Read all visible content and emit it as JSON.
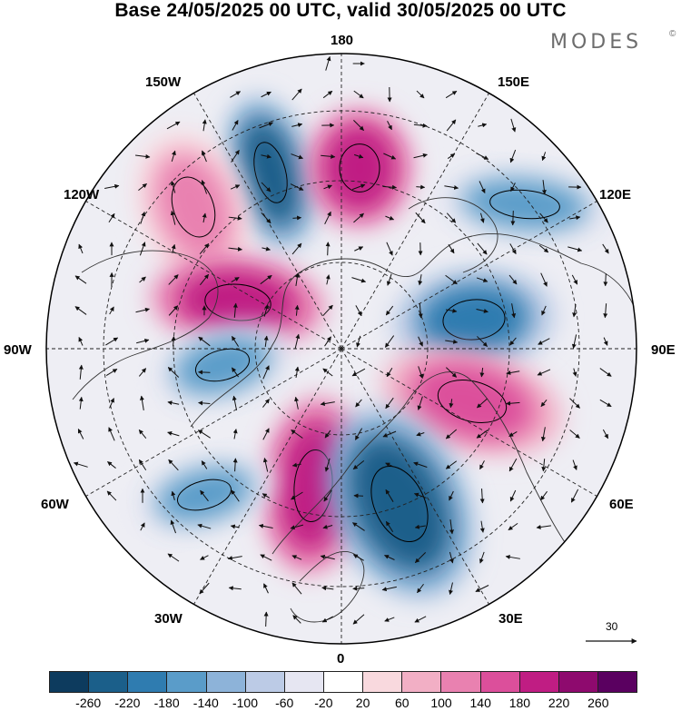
{
  "title": "Base 24/05/2025 00 UTC, valid 30/05/2025 00 UTC",
  "logo": {
    "text": "MODES",
    "mark": "©"
  },
  "map": {
    "projection": "north-polar-stereographic",
    "longitude_labels": {
      "top": "180",
      "top_left": "150W",
      "top_right": "150E",
      "upper_left": "120W",
      "upper_right": "120E",
      "left": "90W",
      "right": "90E",
      "lower_left": "60W",
      "lower_right": "60E",
      "bottom_left": "30W",
      "bottom_right": "30E",
      "bottom": "0"
    },
    "anomaly_centers": [
      {
        "sign": "negative",
        "near": "150W-180",
        "value": -220
      },
      {
        "sign": "positive",
        "near": "180",
        "value": 220
      },
      {
        "sign": "positive",
        "near": "150W",
        "value": 140
      },
      {
        "sign": "negative",
        "near": "120E",
        "value": -140
      },
      {
        "sign": "positive",
        "near": "90W-120W",
        "value": 220
      },
      {
        "sign": "negative",
        "near": "90E",
        "value": -180
      },
      {
        "sign": "negative",
        "near": "90W",
        "value": -140
      },
      {
        "sign": "positive",
        "near": "60E",
        "value": 180
      },
      {
        "sign": "positive",
        "near": "0",
        "value": 220
      },
      {
        "sign": "negative",
        "near": "30E",
        "value": -220
      },
      {
        "sign": "negative",
        "near": "60W",
        "value": -140
      }
    ]
  },
  "vector_scale": {
    "value": "30"
  },
  "colorbar": {
    "colors": [
      "#0d3b5e",
      "#1b5f8a",
      "#2f7cb0",
      "#5a9cc9",
      "#8db3d9",
      "#bccbe6",
      "#e6e6f2",
      "#ffffff",
      "#f9d9de",
      "#f2afc5",
      "#e981b0",
      "#dc4f9b",
      "#c01d83",
      "#8e0a6e",
      "#5a0060"
    ],
    "tick_labels": [
      "-260",
      "-220",
      "-180",
      "-140",
      "-100",
      "-60",
      "-20",
      "20",
      "60",
      "100",
      "140",
      "180",
      "220",
      "260"
    ]
  }
}
